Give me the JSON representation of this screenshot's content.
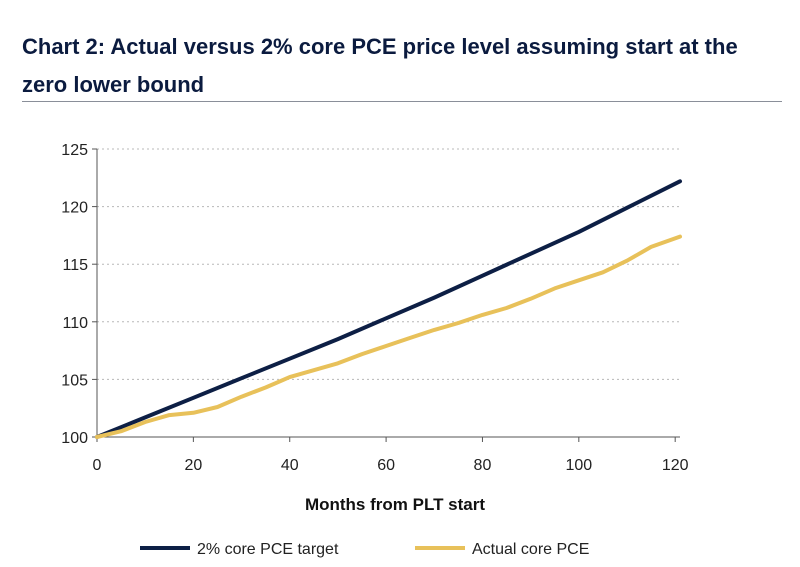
{
  "chart_data": {
    "type": "line",
    "title": "Chart 2: Actual versus 2% core PCE price level assuming start at the zero lower bound",
    "xlabel": "Months from PLT start",
    "ylabel": "",
    "xlim": [
      0,
      121
    ],
    "ylim": [
      100,
      125
    ],
    "x_ticks": [
      0,
      20,
      40,
      60,
      80,
      100,
      120
    ],
    "y_ticks": [
      100,
      105,
      110,
      115,
      120,
      125
    ],
    "x_tick_labels": [
      "0",
      "20",
      "40",
      "60",
      "80",
      "100",
      "120"
    ],
    "y_tick_labels": [
      "100",
      "105",
      "110",
      "115",
      "120",
      "125"
    ],
    "grid": "horizontal dashed",
    "legend_position": "bottom",
    "series": [
      {
        "name": "2% core PCE target",
        "color": "#0d1f45",
        "x": [
          0,
          10,
          20,
          30,
          40,
          50,
          60,
          70,
          80,
          90,
          100,
          110,
          121
        ],
        "values": [
          100,
          101.7,
          103.4,
          105.1,
          106.8,
          108.5,
          110.3,
          112.1,
          114.0,
          115.9,
          117.8,
          119.9,
          122.2
        ]
      },
      {
        "name": "Actual core PCE",
        "color": "#e8c15a",
        "x": [
          0,
          5,
          10,
          15,
          20,
          25,
          30,
          35,
          40,
          45,
          50,
          55,
          60,
          65,
          70,
          75,
          80,
          85,
          90,
          95,
          100,
          105,
          110,
          115,
          121
        ],
        "values": [
          100,
          100.5,
          101.3,
          101.9,
          102.1,
          102.6,
          103.5,
          104.3,
          105.2,
          105.8,
          106.4,
          107.2,
          107.9,
          108.6,
          109.3,
          109.9,
          110.6,
          111.2,
          112.0,
          112.9,
          113.6,
          114.3,
          115.3,
          116.5,
          117.4
        ]
      }
    ]
  }
}
